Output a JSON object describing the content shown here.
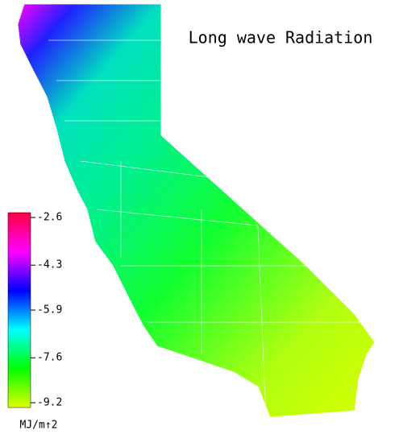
{
  "title": "Long wave Radiation",
  "colorbar": {
    "lim": [
      -9.2,
      -2.6
    ],
    "ticks": [
      -2.6,
      -4.3,
      -5.9,
      -7.6,
      -9.2
    ],
    "unit": "MJ/m↑2",
    "colors": [
      "#e0ff00",
      "#00ff00",
      "#00ffff",
      "#0000ff",
      "#ff00ff",
      "#ff0040"
    ]
  }
}
